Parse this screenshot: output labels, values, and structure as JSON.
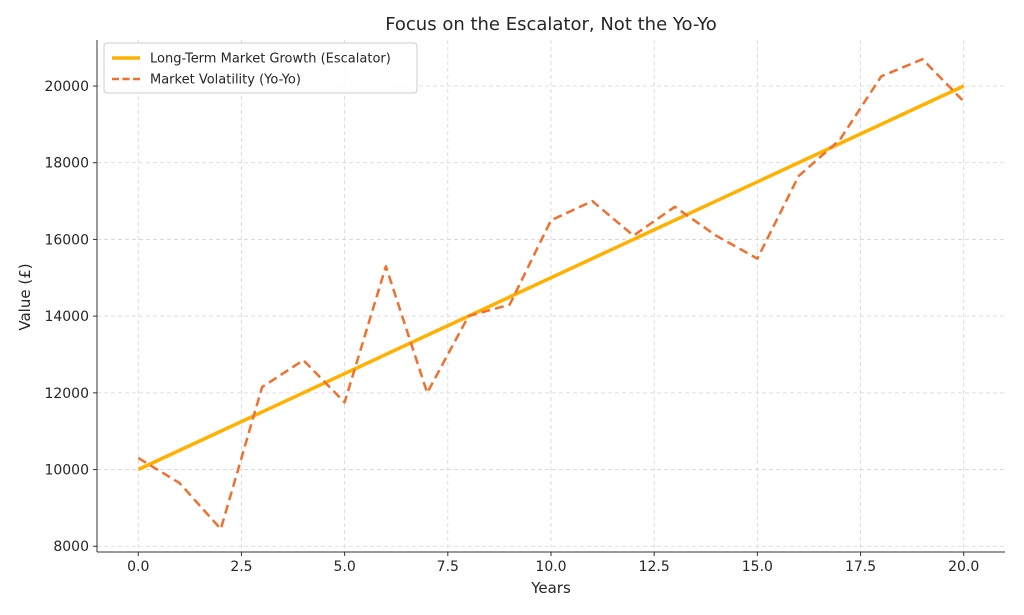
{
  "chart_data": {
    "type": "line",
    "title": "Focus on the Escalator, Not the Yo-Yo",
    "xlabel": "Years",
    "ylabel": "Value (£)",
    "xlim": [
      -1,
      21
    ],
    "ylim": [
      7850,
      21200
    ],
    "x_ticks": [
      0.0,
      2.5,
      5.0,
      7.5,
      10.0,
      12.5,
      15.0,
      17.5,
      20.0
    ],
    "x_tick_labels": [
      "0.0",
      "2.5",
      "5.0",
      "7.5",
      "10.0",
      "12.5",
      "15.0",
      "17.5",
      "20.0"
    ],
    "y_ticks": [
      8000,
      10000,
      12000,
      14000,
      16000,
      18000,
      20000
    ],
    "y_tick_labels": [
      "8000",
      "10000",
      "12000",
      "14000",
      "16000",
      "18000",
      "20000"
    ],
    "grid": true,
    "legend_position": "top-left",
    "series": [
      {
        "name": "Long-Term Market Growth (Escalator)",
        "color": "#ffb000",
        "style": "solid",
        "x": [
          0,
          20
        ],
        "values": [
          10000,
          20000
        ]
      },
      {
        "name": "Market Volatility (Yo-Yo)",
        "color": "#f07030",
        "style": "dashed",
        "x": [
          0,
          1,
          2,
          3,
          4,
          5,
          6,
          7,
          8,
          9,
          10,
          11,
          12,
          13,
          14,
          15,
          16,
          17,
          18,
          19,
          20
        ],
        "values": [
          10300,
          9650,
          8450,
          12150,
          12850,
          11750,
          15300,
          12000,
          14000,
          14300,
          16500,
          17000,
          16100,
          16850,
          16100,
          15500,
          17650,
          18600,
          20250,
          20700,
          19600
        ]
      }
    ]
  }
}
